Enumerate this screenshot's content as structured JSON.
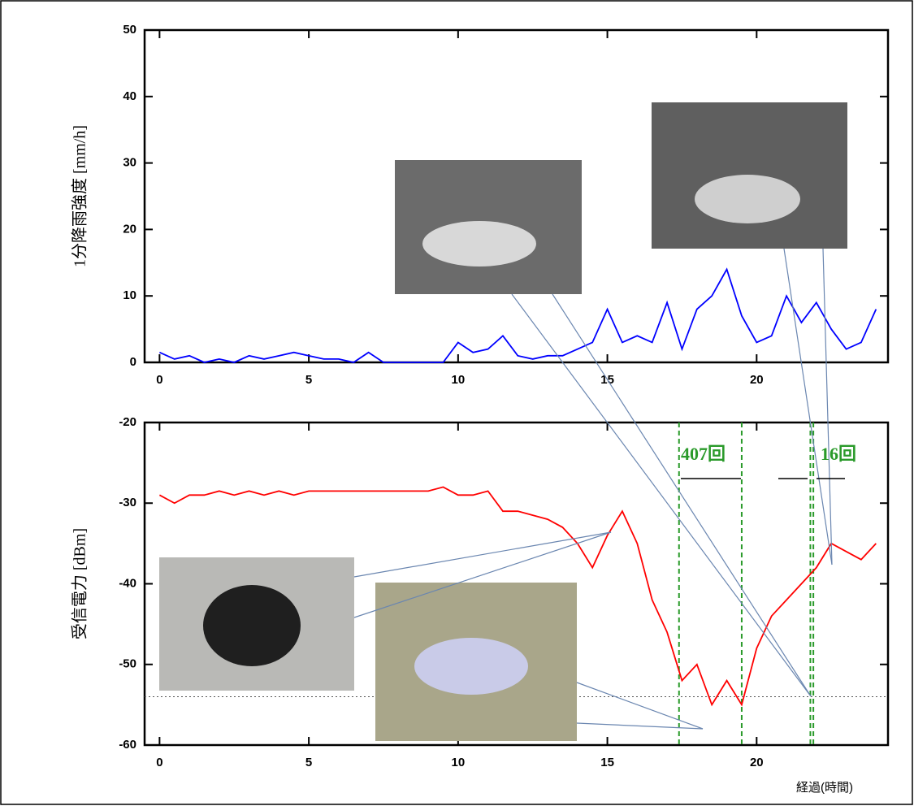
{
  "chart_data": [
    {
      "type": "line",
      "y_label": "1分降雨強度 [mm/h]",
      "x": [
        0,
        0.5,
        1,
        1.5,
        2,
        2.5,
        3,
        3.5,
        4,
        4.5,
        5,
        5.5,
        6,
        6.5,
        7,
        7.5,
        8,
        8.5,
        9,
        9.5,
        10,
        10.5,
        11,
        11.5,
        12,
        12.5,
        13,
        13.5,
        14,
        14.5,
        15,
        15.5,
        16,
        16.5,
        17,
        17.5,
        18,
        18.5,
        19,
        19.5,
        20,
        20.5,
        21,
        21.5,
        22,
        22.5,
        23,
        23.5,
        24
      ],
      "series": [
        {
          "color": "#0000ff",
          "values": [
            1.5,
            0.5,
            1,
            0,
            0.5,
            0,
            1,
            0.5,
            1,
            1.5,
            1,
            0.5,
            0.5,
            0,
            1.5,
            0,
            0,
            0,
            0,
            0,
            3,
            1.5,
            2,
            4,
            1,
            0.5,
            1,
            1,
            2,
            3,
            8,
            3,
            4,
            3,
            9,
            2,
            8,
            10,
            14,
            7,
            3,
            4,
            10,
            6,
            9,
            5,
            2,
            3,
            8
          ]
        }
      ],
      "xlim": [
        -0.5,
        24.4
      ],
      "ylim": [
        0,
        50
      ],
      "xticks": [
        0,
        5,
        10,
        15,
        20
      ],
      "yticks": [
        0,
        10,
        20,
        30,
        40,
        50
      ]
    },
    {
      "type": "line",
      "y_label": "受信電力 [dBm]",
      "x_label": "経過(時間)",
      "x": [
        0,
        0.5,
        1,
        1.5,
        2,
        2.5,
        3,
        3.5,
        4,
        4.5,
        5,
        5.5,
        6,
        6.5,
        7,
        7.5,
        8,
        8.5,
        9,
        9.5,
        10,
        10.5,
        11,
        11.5,
        12,
        12.5,
        13,
        13.5,
        14,
        14.5,
        15,
        15.5,
        16,
        16.5,
        17,
        17.5,
        18,
        18.5,
        19,
        19.5,
        20,
        20.5,
        21,
        21.5,
        22,
        22.5,
        23,
        23.5,
        24
      ],
      "series": [
        {
          "color": "#ff0000",
          "values": [
            -29,
            -30,
            -29,
            -29,
            -28.5,
            -29,
            -28.5,
            -29,
            -28.5,
            -29,
            -28.5,
            -28.5,
            -28.5,
            -28.5,
            -28.5,
            -28.5,
            -28.5,
            -28.5,
            -28.5,
            -28,
            -29,
            -29,
            -28.5,
            -31,
            -31,
            -31.5,
            -32,
            -33,
            -35,
            -38,
            -34,
            -31,
            -35,
            -42,
            -46,
            -52,
            -50,
            -55,
            -52,
            -55,
            -48,
            -44,
            -42,
            -40,
            -38,
            -35,
            -36,
            -37,
            -35
          ]
        }
      ],
      "xlim": [
        -0.5,
        24.4
      ],
      "ylim": [
        -60,
        -20
      ],
      "xticks": [
        0,
        5,
        10,
        15,
        20
      ],
      "yticks": [
        -60,
        -50,
        -40,
        -30,
        -20
      ],
      "vlines": [
        17.4,
        19.5,
        21.8,
        21.9
      ],
      "hline": -54,
      "annotations": [
        "407回",
        "16回"
      ]
    }
  ]
}
